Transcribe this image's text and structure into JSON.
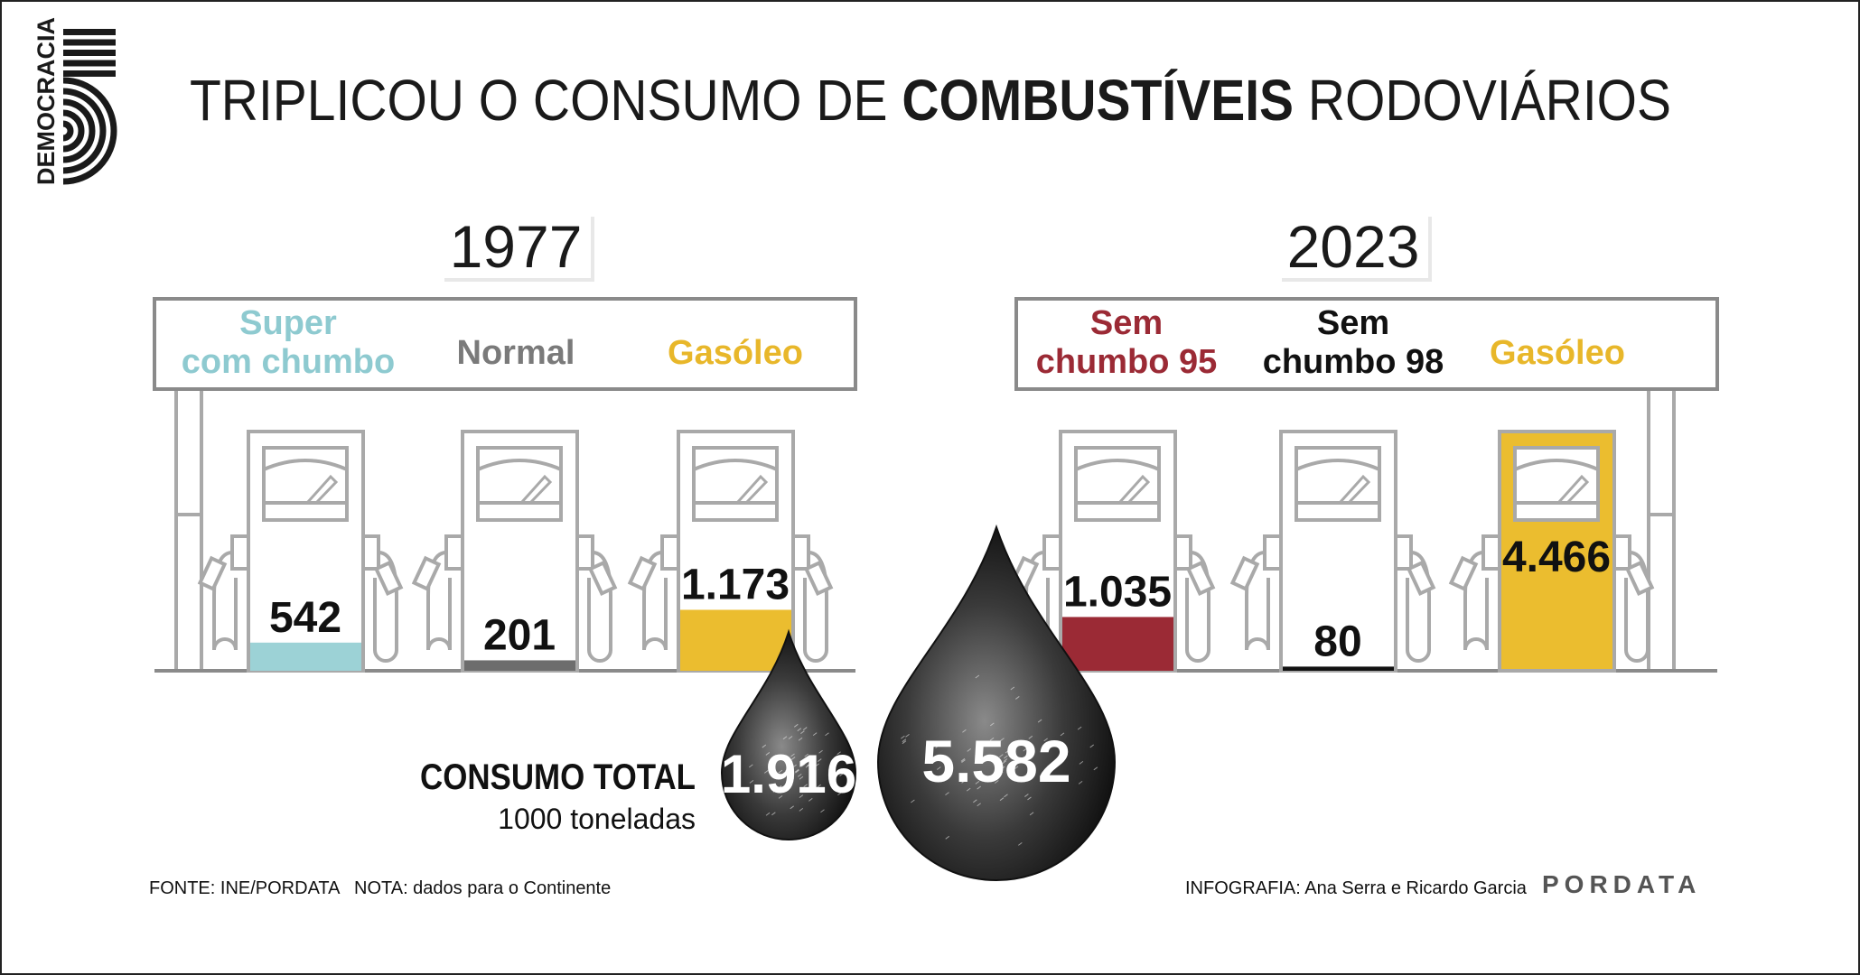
{
  "logo": {
    "text": "DEMOCRACIA"
  },
  "title": {
    "light_1": "TRIPLICOU O CONSUMO DE ",
    "bold": "COMBUSTÍVEIS",
    "light_2": " RODOVIÁRIOS"
  },
  "stations": [
    {
      "year": "1977",
      "pumps": [
        {
          "label_lines": [
            "Super",
            "com chumbo"
          ],
          "value": 542,
          "value_label": "542",
          "color": "#9cd2d6",
          "label_color": "#8ecad0"
        },
        {
          "label_lines": [
            "Normal"
          ],
          "value": 201,
          "value_label": "201",
          "color": "#6d6d6d",
          "label_color": "#7a7a7a"
        },
        {
          "label_lines": [
            "Gasóleo"
          ],
          "value": 1173,
          "value_label": "1.173",
          "color": "#ebbd2f",
          "label_color": "#e8b72a"
        }
      ],
      "total": {
        "value": 1916,
        "label": "1.916"
      }
    },
    {
      "year": "2023",
      "pumps": [
        {
          "label_lines": [
            "Sem",
            "chumbo 95"
          ],
          "value": 1035,
          "value_label": "1.035",
          "color": "#9b2a35",
          "label_color": "#9b2a35"
        },
        {
          "label_lines": [
            "Sem",
            "chumbo 98"
          ],
          "value": 80,
          "value_label": "80",
          "color": "#111111",
          "label_color": "#111111"
        },
        {
          "label_lines": [
            "Gasóleo"
          ],
          "value": 4466,
          "value_label": "4.466",
          "color": "#ebbd2f",
          "label_color": "#e8b72a"
        }
      ],
      "total": {
        "value": 5582,
        "label": "5.582"
      }
    }
  ],
  "total_label": {
    "title": "CONSUMO TOTAL",
    "unit": "1000 toneladas"
  },
  "footer": {
    "source": "FONTE: INE/PORDATA",
    "note": "NOTA: dados para o Continente",
    "credits": "INFOGRAFIA: Ana Serra e Ricardo Garcia",
    "brand": "PORDATA"
  },
  "chart_data": {
    "type": "bar",
    "unit": "1000 toneladas",
    "groups": [
      {
        "year": "1977",
        "categories": [
          "Super com chumbo",
          "Normal",
          "Gasóleo"
        ],
        "values": [
          542,
          201,
          1173
        ],
        "total": 1916
      },
      {
        "year": "2023",
        "categories": [
          "Sem chumbo 95",
          "Sem chumbo 98",
          "Gasóleo"
        ],
        "values": [
          1035,
          80,
          4466
        ],
        "total": 5582
      }
    ]
  }
}
